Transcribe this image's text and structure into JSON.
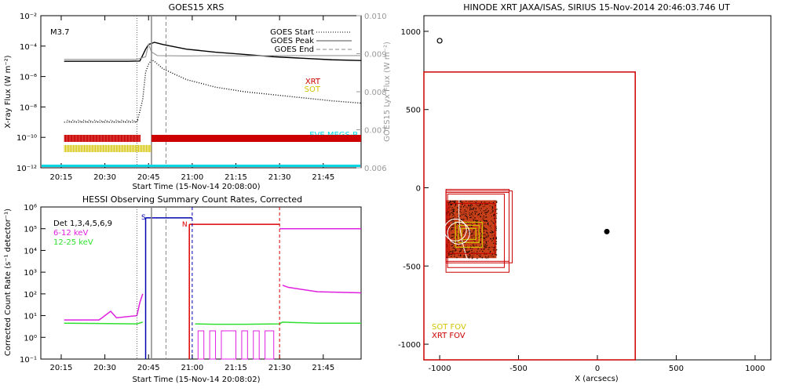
{
  "chart_data": [
    {
      "type": "line",
      "title": "GOES15 XRS",
      "xlabel": "Start Time (15-Nov-14 20:08:00)",
      "ylabel": "X-ray Flux (W m⁻²)",
      "ylabel_right": "GOES15 Lyx Flux (W m⁻²)",
      "x_ticks": [
        "20:15",
        "20:30",
        "20:45",
        "21:00",
        "21:15",
        "21:30",
        "21:45"
      ],
      "y_ticks": [
        "10⁻²",
        "10⁻⁴",
        "10⁻⁶",
        "10⁻⁸",
        "10⁻¹⁰",
        "10⁻¹²"
      ],
      "y_right_ticks": [
        "0.010",
        "0.009",
        "0.008",
        "0.007",
        "0.006"
      ],
      "flare_class": "M3.7",
      "legend": [
        "GOES Start",
        "GOES Peak",
        "GOES End"
      ],
      "instrument_labels": [
        "XRT",
        "SOT",
        "EVE MEGS-B"
      ],
      "colors": {
        "XRT": "#cc0000",
        "SOT": "#d4c400",
        "EVE MEGS-B": "#00d6e6",
        "lya": "#999999"
      },
      "markers_min": {
        "goes_start": 33,
        "goes_peak": 38,
        "goes_end": 43
      },
      "yscale": "log",
      "series": [
        {
          "name": "long",
          "color": "#000000",
          "points": [
            [
              8,
              -5.0
            ],
            [
              30,
              -5.0
            ],
            [
              34,
              -4.98
            ],
            [
              35,
              -4.6
            ],
            [
              36,
              -4.2
            ],
            [
              37,
              -3.9
            ],
            [
              39,
              -3.75
            ],
            [
              42,
              -3.9
            ],
            [
              50,
              -4.2
            ],
            [
              60,
              -4.4
            ],
            [
              70,
              -4.55
            ],
            [
              80,
              -4.7
            ],
            [
              90,
              -4.8
            ],
            [
              100,
              -4.9
            ],
            [
              110,
              -4.95
            ]
          ]
        },
        {
          "name": "short",
          "color": "#000000",
          "dotted": true,
          "points": [
            [
              8,
              -9.0
            ],
            [
              33,
              -9.0
            ],
            [
              34,
              -8.3
            ],
            [
              35,
              -7.5
            ],
            [
              36,
              -5.7
            ],
            [
              37,
              -5.2
            ],
            [
              38,
              -4.9
            ],
            [
              39,
              -5.0
            ],
            [
              42,
              -5.5
            ],
            [
              50,
              -6.2
            ],
            [
              60,
              -6.7
            ],
            [
              70,
              -7.0
            ],
            [
              80,
              -7.2
            ],
            [
              90,
              -7.4
            ],
            [
              100,
              -7.6
            ],
            [
              110,
              -7.75
            ]
          ]
        },
        {
          "name": "lya",
          "color": "#999999",
          "axis": "right",
          "points": [
            [
              8,
              0.00885
            ],
            [
              33,
              0.00885
            ],
            [
              36,
              0.00892
            ],
            [
              37,
              0.00925
            ],
            [
              38,
              0.00905
            ],
            [
              40,
              0.00895
            ],
            [
              50,
              0.00894
            ],
            [
              60,
              0.00895
            ],
            [
              70,
              0.00894
            ],
            [
              80,
              0.00895
            ],
            [
              90,
              0.00895
            ],
            [
              110,
              0.00895
            ]
          ]
        }
      ]
    },
    {
      "type": "line",
      "title": "HESSI Observing Summary Count Rates, Corrected",
      "xlabel": "Start Time (15-Nov-14 20:08:02)",
      "ylabel": "Corrected Count Rate (s⁻¹ detector⁻¹)",
      "x_ticks": [
        "20:15",
        "20:30",
        "20:45",
        "21:00",
        "21:15",
        "21:30",
        "21:45"
      ],
      "y_ticks": [
        "10⁶",
        "10⁵",
        "10⁴",
        "10³",
        "10²",
        "10¹",
        "10⁰",
        "10⁻¹"
      ],
      "legend": [
        "Det 1,3,4,5,6,9",
        "6-12 keV",
        "12-25 keV"
      ],
      "flag_labels": [
        "S",
        "N"
      ],
      "colors": {
        "6-12 keV": "#e020e0",
        "12-25 keV": "#30e030",
        "S": "#0000b0",
        "N": "#dd0000"
      },
      "yscale": "log",
      "series": [
        {
          "name": "6-12 keV",
          "color": "#e020e0",
          "points": [
            [
              8,
              0.8
            ],
            [
              20,
              0.8
            ],
            [
              24,
              1.2
            ],
            [
              26,
              0.9
            ],
            [
              33,
              1.0
            ],
            [
              34,
              1.6
            ],
            [
              35,
              2.0
            ],
            [
              36,
              -1
            ],
            [
              82,
              -1
            ],
            [
              83,
              2.4
            ],
            [
              85,
              2.3
            ],
            [
              95,
              2.1
            ],
            [
              110,
              2.05
            ]
          ]
        },
        {
          "name": "12-25 keV",
          "color": "#30e030",
          "points": [
            [
              8,
              0.65
            ],
            [
              33,
              0.62
            ],
            [
              35,
              0.7
            ],
            [
              36,
              -1
            ],
            [
              52,
              -1
            ],
            [
              53,
              0.62
            ],
            [
              60,
              0.6
            ],
            [
              70,
              0.6
            ],
            [
              82,
              0.62
            ],
            [
              83,
              0.7
            ],
            [
              95,
              0.65
            ],
            [
              110,
              0.65
            ]
          ]
        },
        {
          "name": "S",
          "color": "#0000b0",
          "points": [
            [
              36,
              5.5
            ],
            [
              52,
              5.5
            ]
          ]
        },
        {
          "name": "N",
          "color": "#dd0000",
          "points": [
            [
              51,
              5.2
            ],
            [
              82,
              5.2
            ]
          ]
        },
        {
          "name": "Det high",
          "color": "#e020e0",
          "points": [
            [
              82,
              5.0
            ],
            [
              110,
              5.0
            ]
          ]
        }
      ]
    },
    {
      "type": "scatter",
      "title": "HINODE XRT JAXA/ISAS, SIRIUS 15-Nov-2014 20:46:03.746 UT",
      "xlabel": "X (arcsecs)",
      "ylabel": "",
      "xlim": [
        -1100,
        1100
      ],
      "ylim": [
        -1100,
        1100
      ],
      "x_ticks": [
        "-1000",
        "-500",
        "0",
        "500",
        "1000"
      ],
      "y_ticks": [
        "1000",
        "500",
        "0",
        "-500",
        "-1000"
      ],
      "legend": [
        "SOT FOV",
        "XRT FOV"
      ],
      "colors": {
        "SOT FOV": "#d4c400",
        "XRT FOV": "#cc0000"
      },
      "xrt_large_fov": {
        "x0": -1100,
        "x1": 240,
        "y0": -1100,
        "y1": 740
      },
      "xrt_small_fovs": [
        {
          "x0": -960,
          "x1": -560,
          "y0": -470,
          "y1": -10
        },
        {
          "x0": -960,
          "x1": -540,
          "y0": -480,
          "y1": -20
        },
        {
          "x0": -950,
          "x1": -590,
          "y0": -510,
          "y1": -40
        },
        {
          "x0": -960,
          "x1": -560,
          "y0": -540,
          "y1": -30
        },
        {
          "x0": -940,
          "x1": -650,
          "y0": -420,
          "y1": -100
        }
      ],
      "sot_fovs": [
        {
          "x0": -880,
          "x1": -750,
          "y0": -350,
          "y1": -240
        },
        {
          "x0": -860,
          "x1": -770,
          "y0": -330,
          "y1": -260
        },
        {
          "x0": -900,
          "x1": -730,
          "y0": -380,
          "y1": -220
        }
      ],
      "image_box": {
        "x0": -960,
        "x1": -640,
        "y0": -450,
        "y1": -80
      },
      "circle_marks": [
        [
          -900,
          -270
        ],
        [
          -880,
          -290
        ]
      ],
      "open_point": [
        -1000,
        940
      ],
      "filled_point": [
        60,
        -280
      ]
    }
  ]
}
